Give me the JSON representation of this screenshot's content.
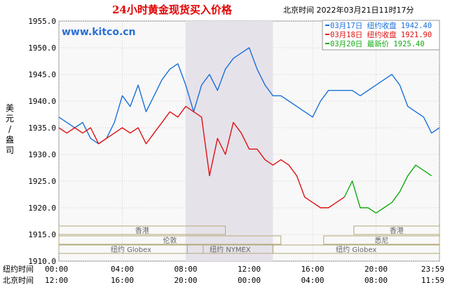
{
  "chart_data": {
    "type": "line",
    "title": "24小时黄金现货买入价格",
    "timestamp": "北京时间  2022年03月21日11时17分",
    "watermark": "www.kitco.cn",
    "ylabel": "美元/盎司",
    "ylim": [
      1910,
      1955
    ],
    "yticks": [
      "1955.0",
      "1950.0",
      "1945.0",
      "1940.0",
      "1935.0",
      "1930.0",
      "1925.0",
      "1920.0",
      "1915.0",
      "1910.0"
    ],
    "xlim": [
      0,
      24
    ],
    "x_rows": [
      {
        "label": "纽约时间",
        "ticks": [
          "00:00",
          "04:00",
          "08:00",
          "12:00",
          "16:00",
          "20:00",
          "23:59"
        ]
      },
      {
        "label": "北京时间",
        "ticks": [
          "12:00",
          "16:00",
          "20:00",
          "00:00",
          "04:00",
          "08:00",
          "11:59"
        ]
      }
    ],
    "sessions": [
      {
        "name": "香港",
        "start": 0,
        "end": 10.5,
        "row": 1
      },
      {
        "name": "香港",
        "start": 18.6,
        "end": 24,
        "row": 1
      },
      {
        "name": "伦敦",
        "start": 0,
        "end": 14.0,
        "row": 2
      },
      {
        "name": "悉尼",
        "start": 16.7,
        "end": 24,
        "row": 2
      },
      {
        "name": "纽约 Globex",
        "start": 0,
        "end": 9.1,
        "row": 3
      },
      {
        "name": "纽约 NYMEX",
        "start": 8.1,
        "end": 13.5,
        "row": 3
      },
      {
        "name": "纽约 Globex",
        "start": 13.5,
        "end": 24,
        "row": 3
      }
    ],
    "nymex_shade": [
      8.0,
      13.5
    ],
    "legend": [
      {
        "label": "03月17日",
        "desc": "纽约收盘",
        "value": "1942.40",
        "color": "#1a6fd9"
      },
      {
        "label": "03月18日",
        "desc": "纽约收盘",
        "value": "1921.90",
        "color": "#dd1111"
      },
      {
        "label": "03月20日",
        "desc": "最新价",
        "value": "1925.40",
        "color": "#11aa11"
      }
    ],
    "series": [
      {
        "name": "03月17日",
        "color": "#1a6fd9",
        "x": [
          0,
          0.5,
          1,
          1.5,
          2,
          2.5,
          3,
          3.5,
          4,
          4.5,
          5,
          5.5,
          6,
          6.5,
          7,
          7.5,
          8,
          8.5,
          9,
          9.5,
          10,
          10.5,
          11,
          11.5,
          12,
          12.5,
          13,
          13.5,
          14,
          14.5,
          15,
          15.5,
          16,
          16.5,
          17,
          17.5,
          18,
          18.5,
          19,
          19.5,
          20,
          20.5,
          21,
          21.5,
          22,
          22.5,
          23,
          23.5,
          24
        ],
        "values": [
          1937,
          1936,
          1935,
          1936,
          1933,
          1932,
          1933,
          1936,
          1941,
          1939,
          1943,
          1938,
          1941,
          1944,
          1946,
          1947,
          1943,
          1938,
          1943,
          1945,
          1942,
          1946,
          1948,
          1949,
          1950,
          1946,
          1943,
          1941,
          1941,
          1940,
          1939,
          1938,
          1937,
          1940,
          1942,
          1942,
          1942,
          1942,
          1941,
          1942,
          1943,
          1944,
          1945,
          1943,
          1939,
          1938,
          1937,
          1934,
          1935
        ]
      },
      {
        "name": "03月18日",
        "color": "#dd1111",
        "x": [
          0,
          0.5,
          1,
          1.5,
          2,
          2.5,
          3,
          3.5,
          4,
          4.5,
          5,
          5.5,
          6,
          6.5,
          7,
          7.5,
          8,
          8.5,
          9,
          9.5,
          10,
          10.5,
          11,
          11.5,
          12,
          12.5,
          13,
          13.5,
          14,
          14.5,
          15,
          15.5,
          16,
          16.5,
          17,
          17.5,
          18
        ],
        "values": [
          1935,
          1934,
          1935,
          1934,
          1935,
          1932,
          1933,
          1934,
          1935,
          1934,
          1935,
          1932,
          1934,
          1936,
          1938,
          1937,
          1939,
          1938,
          1937,
          1926,
          1933,
          1930,
          1936,
          1934,
          1931,
          1931,
          1929,
          1928,
          1929,
          1928,
          1926,
          1922,
          1921,
          1920,
          1920,
          1921,
          1922
        ]
      },
      {
        "name": "03月20日",
        "color": "#11aa11",
        "x": [
          18,
          18.5,
          19,
          19.5,
          20,
          20.5,
          21,
          21.5,
          22,
          22.5,
          23,
          23.5
        ],
        "values": [
          1922,
          1925,
          1920,
          1920,
          1919,
          1920,
          1921,
          1923,
          1926,
          1928,
          1927,
          1926
        ]
      }
    ]
  }
}
